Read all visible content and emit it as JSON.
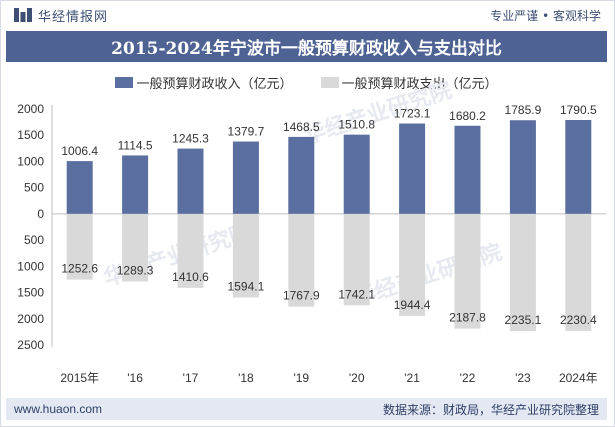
{
  "header": {
    "brand": "华经情报网",
    "tagline": "专业严谨 • 客观科学"
  },
  "title": "2015-2024年宁波市一般预算财政收入与支出对比",
  "footer": {
    "url": "www.huaon.com",
    "source": "数据来源：财政局，华经产业研究院整理"
  },
  "watermark": "华经产业研究院",
  "colors": {
    "title_bg": "#4e6294",
    "income": "#5a6f9f",
    "expense": "#d9d9d9",
    "footer_bg": "#e3e8f2"
  },
  "chart_data": {
    "type": "bar",
    "categories": [
      "2015年",
      "'16",
      "'17",
      "'18",
      "'19",
      "'20",
      "'21",
      "'22",
      "'23",
      "2024年"
    ],
    "series": [
      {
        "name": "一般预算财政收入（亿元）",
        "values": [
          1006.4,
          1114.5,
          1245.3,
          1379.7,
          1468.5,
          1510.8,
          1723.1,
          1680.2,
          1785.9,
          1790.5
        ],
        "labels": [
          "1006.4",
          "1114.5",
          "1245.3",
          "1379.7",
          "1468.5",
          "1510.8",
          "1723.1",
          "1680.2",
          "1785.9",
          "1790.5"
        ]
      },
      {
        "name": "一般预算财政支出（亿元）",
        "values": [
          -1252.6,
          -1289.3,
          -1410.6,
          -1594.1,
          -1767.9,
          -1742.1,
          -1944.4,
          -2187.8,
          -2235.1,
          -2230.4
        ],
        "labels": [
          "1252.6",
          "1289.3",
          "1410.6",
          "1594.1",
          "1767.9",
          "1742.1",
          "1944.4",
          "2187.8",
          "2235.1",
          "2230.4"
        ]
      }
    ],
    "yticks": [
      2000,
      1500,
      1000,
      500,
      0,
      -500,
      -1000,
      -1500,
      -2000,
      -2500
    ],
    "ytick_labels": [
      "2000",
      "1500",
      "1000",
      "500",
      "0",
      "500",
      "1000",
      "1500",
      "2000",
      "2500"
    ],
    "ylim": [
      -2500,
      2000
    ],
    "grid": false,
    "legend_position": "top-center"
  }
}
